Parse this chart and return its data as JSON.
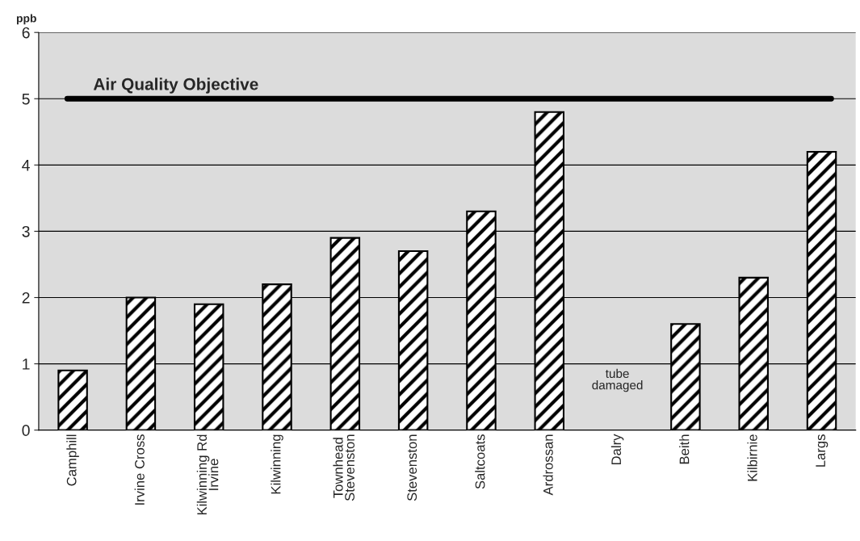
{
  "chart_data": {
    "type": "bar",
    "ylabel": "ppb",
    "categories": [
      "Camphill",
      "Irvine Cross",
      "Kilwinning Rd\nIrvine",
      "Kilwinning",
      "Townhead\nStevenston",
      "Stevenston",
      "Saltcoats",
      "Ardrossan",
      "Dalry",
      "Beith",
      "Kilbirnie",
      "Largs"
    ],
    "values": [
      0.9,
      2.0,
      1.9,
      2.2,
      2.9,
      2.7,
      3.3,
      4.8,
      null,
      1.6,
      2.3,
      4.2
    ],
    "color": "#000000",
    "ylim": [
      0,
      6
    ],
    "yticks": [
      0,
      1,
      2,
      3,
      4,
      5,
      6
    ],
    "grid": "y",
    "ref_lines": [
      {
        "axis": "y",
        "value": 5,
        "label": "Air Quality Objective",
        "color": "#000000"
      }
    ],
    "annotations": [
      "tube\ndamaged"
    ]
  }
}
